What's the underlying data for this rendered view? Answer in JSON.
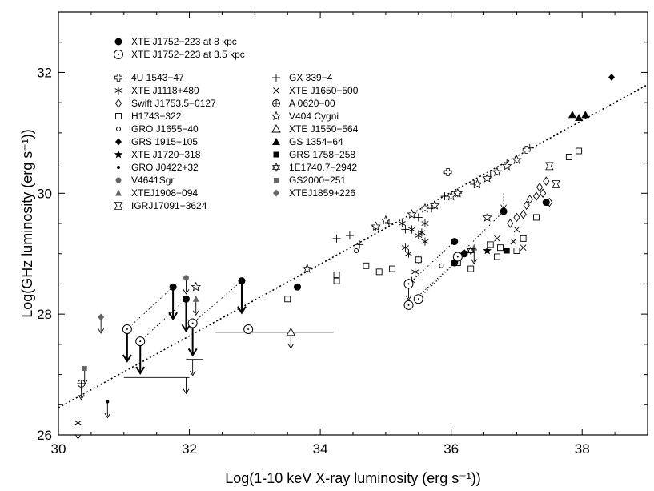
{
  "chart_data": {
    "type": "scatter",
    "xlabel": "Log(1-10 keV X-ray luminosity (erg s⁻¹))",
    "ylabel": "Log(GHz luminosity (erg s⁻¹))",
    "xlim": [
      30,
      39
    ],
    "ylim": [
      26,
      33
    ],
    "xticks": [
      "30",
      "32",
      "34",
      "36",
      "38"
    ],
    "yticks": [
      "26",
      "28",
      "30",
      "32"
    ],
    "fit_line": {
      "x": [
        30,
        39
      ],
      "y": [
        26.45,
        31.8
      ],
      "style": "dotted"
    },
    "legend_top": [
      {
        "name": "XTE J1752−223 at 8 kpc",
        "marker": "filled-circle"
      },
      {
        "name": "XTE J1752−223 at 3.5 kpc",
        "marker": "open-circle-dot"
      }
    ],
    "legend_col1": [
      {
        "name": "4U 1543−47",
        "marker": "dcross"
      },
      {
        "name": "XTE J1118+480",
        "marker": "asterisk"
      },
      {
        "name": "Swift J1753.5−0127",
        "marker": "diamond-open"
      },
      {
        "name": "H1743−322",
        "marker": "square-open"
      },
      {
        "name": "GRO J1655−40",
        "marker": "small-circle"
      },
      {
        "name": "GRS 1915+105",
        "marker": "diamond-filled"
      },
      {
        "name": "XTE J1720−318",
        "marker": "star-filled"
      },
      {
        "name": "GRO J0422+32",
        "marker": "dot"
      },
      {
        "name": "V4641Sgr",
        "marker": "gray-circle"
      },
      {
        "name": "XTEJ1908+094",
        "marker": "gray-triangle"
      },
      {
        "name": "IGRJ17091−3624",
        "marker": "bowtie"
      }
    ],
    "legend_col2": [
      {
        "name": "GX 339−4",
        "marker": "plus"
      },
      {
        "name": "XTE J1650−500",
        "marker": "x"
      },
      {
        "name": "A 0620−00",
        "marker": "circle-plus"
      },
      {
        "name": "V404 Cygni",
        "marker": "star-open"
      },
      {
        "name": "XTE J1550−564",
        "marker": "triangle-open"
      },
      {
        "name": "GS 1354−64",
        "marker": "triangle-filled"
      },
      {
        "name": "GRS 1758−258",
        "marker": "square-filled"
      },
      {
        "name": "1E1740.7−2942",
        "marker": "star-of-david"
      },
      {
        "name": "GS2000+251",
        "marker": "gray-square"
      },
      {
        "name": "XTEJ1859+226",
        "marker": "gray-diamond"
      }
    ],
    "series": [
      {
        "name": "GX 339−4",
        "marker": "plus",
        "points": [
          [
            34.25,
            29.25
          ],
          [
            34.45,
            29.3
          ],
          [
            34.6,
            29.15
          ],
          [
            34.85,
            29.45
          ],
          [
            35.05,
            29.5
          ],
          [
            35.3,
            29.4
          ],
          [
            35.5,
            29.6
          ],
          [
            35.7,
            29.75
          ],
          [
            35.9,
            29.95
          ],
          [
            36.1,
            30.0
          ],
          [
            36.35,
            30.15
          ],
          [
            36.6,
            30.3
          ],
          [
            36.85,
            30.5
          ],
          [
            37.05,
            30.7
          ],
          [
            37.2,
            30.75
          ]
        ]
      },
      {
        "name": "V404 Cygni",
        "marker": "star-open",
        "points": [
          [
            33.8,
            28.75
          ],
          [
            34.85,
            29.45
          ],
          [
            35.0,
            29.55
          ],
          [
            35.4,
            29.65
          ],
          [
            35.6,
            29.75
          ],
          [
            35.75,
            29.8
          ],
          [
            36.0,
            29.95
          ],
          [
            36.1,
            30.0
          ],
          [
            36.4,
            30.15
          ],
          [
            36.55,
            30.25
          ],
          [
            36.7,
            30.35
          ],
          [
            36.85,
            30.45
          ],
          [
            37.0,
            30.55
          ],
          [
            36.55,
            29.6
          ],
          [
            32.1,
            28.45
          ]
        ]
      },
      {
        "name": "XTE J1118+480",
        "marker": "asterisk",
        "points": [
          [
            35.25,
            29.5
          ],
          [
            35.4,
            29.4
          ],
          [
            35.5,
            29.3
          ],
          [
            35.6,
            29.2
          ],
          [
            35.3,
            29.1
          ],
          [
            35.55,
            29.35
          ],
          [
            35.35,
            29.0
          ],
          [
            35.5,
            28.9
          ],
          [
            35.45,
            28.7
          ],
          [
            35.4,
            28.55
          ],
          [
            35.6,
            29.5
          ],
          [
            30.3,
            26.2
          ]
        ]
      },
      {
        "name": "H1743−322",
        "marker": "square-open",
        "points": [
          [
            33.5,
            28.25
          ],
          [
            34.25,
            28.65
          ],
          [
            34.25,
            28.55
          ],
          [
            34.7,
            28.8
          ],
          [
            34.9,
            28.7
          ],
          [
            35.1,
            28.75
          ],
          [
            35.5,
            28.9
          ],
          [
            36.1,
            28.85
          ],
          [
            36.3,
            28.75
          ],
          [
            36.6,
            29.15
          ],
          [
            36.75,
            29.1
          ],
          [
            36.7,
            28.95
          ],
          [
            37.0,
            29.05
          ],
          [
            37.1,
            29.25
          ],
          [
            37.3,
            29.6
          ],
          [
            37.8,
            30.6
          ],
          [
            37.95,
            30.7
          ]
        ]
      },
      {
        "name": "Swift J1753.5−0127",
        "marker": "diamond-open",
        "points": [
          [
            36.9,
            29.5
          ],
          [
            37.0,
            29.6
          ],
          [
            37.1,
            29.65
          ],
          [
            37.15,
            29.8
          ],
          [
            37.2,
            29.9
          ],
          [
            37.3,
            29.95
          ],
          [
            37.35,
            30.1
          ],
          [
            37.4,
            30.0
          ],
          [
            37.45,
            30.2
          ],
          [
            37.5,
            29.85
          ]
        ]
      },
      {
        "name": "XTE J1650−500",
        "marker": "x",
        "points": [
          [
            36.7,
            29.25
          ],
          [
            37.0,
            29.4
          ],
          [
            37.1,
            29.1
          ],
          [
            36.95,
            29.2
          ]
        ]
      },
      {
        "name": "XTE J1720−318",
        "marker": "star-filled",
        "points": [
          [
            36.55,
            29.05
          ]
        ]
      },
      {
        "name": "GRS 1758−258",
        "marker": "square-filled",
        "points": [
          [
            36.85,
            29.05
          ]
        ]
      },
      {
        "name": "GRS 1915+105",
        "marker": "diamond-filled",
        "points": [
          [
            38.45,
            31.92
          ]
        ]
      },
      {
        "name": "GS 1354−64",
        "marker": "triangle-filled",
        "points": [
          [
            37.85,
            31.3
          ],
          [
            37.95,
            31.25
          ],
          [
            38.05,
            31.3
          ]
        ]
      },
      {
        "name": "4U 1543−47",
        "marker": "dcross",
        "points": [
          [
            35.95,
            30.35
          ],
          [
            37.15,
            30.72
          ]
        ]
      },
      {
        "name": "IGRJ17091−3624",
        "marker": "bowtie",
        "points": [
          [
            37.5,
            30.45
          ],
          [
            37.6,
            30.15
          ]
        ]
      },
      {
        "name": "GRO J1655−40",
        "marker": "small-circle",
        "points": [
          [
            34.55,
            29.05
          ],
          [
            35.85,
            28.8
          ]
        ]
      },
      {
        "name": "A 0620−00",
        "marker": "circle-plus",
        "points": [
          [
            30.35,
            26.85
          ]
        ]
      },
      {
        "name": "GS2000+251",
        "marker": "gray-square",
        "points": [
          [
            30.4,
            27.1
          ]
        ]
      },
      {
        "name": "XTEJ1859+226",
        "marker": "gray-diamond",
        "points": [
          [
            30.65,
            27.95
          ]
        ]
      },
      {
        "name": "V4641Sgr",
        "marker": "gray-circle",
        "points": [
          [
            31.95,
            28.6
          ]
        ]
      },
      {
        "name": "XTEJ1908+094",
        "marker": "gray-triangle",
        "points": [
          [
            32.1,
            28.25
          ],
          [
            36.35,
            29.1
          ]
        ]
      },
      {
        "name": "GRO J0422+32",
        "marker": "dot",
        "points": [
          [
            30.75,
            26.55
          ]
        ]
      },
      {
        "name": "1E1740.7−2942",
        "marker": "star-of-david",
        "points": [
          [
            36.3,
            29.05
          ]
        ]
      },
      {
        "name": "XTE J1550−564",
        "marker": "triangle-open",
        "points": [
          [
            33.55,
            27.7
          ]
        ]
      },
      {
        "name": "XTE J1752−223 at 8 kpc",
        "marker": "filled-circle",
        "points": [
          [
            31.75,
            28.45
          ],
          [
            31.95,
            28.25
          ],
          [
            32.8,
            28.55
          ],
          [
            36.05,
            29.2
          ],
          [
            36.05,
            28.85
          ],
          [
            36.2,
            29.0
          ],
          [
            36.8,
            29.7
          ],
          [
            37.45,
            29.85
          ],
          [
            33.65,
            28.45
          ]
        ]
      },
      {
        "name": "XTE J1752−223 at 3.5 kpc",
        "marker": "open-circle-dot",
        "points": [
          [
            31.05,
            27.75
          ],
          [
            31.25,
            27.55
          ],
          [
            32.05,
            27.85
          ],
          [
            32.9,
            27.75
          ],
          [
            35.35,
            28.5
          ],
          [
            35.35,
            28.15
          ],
          [
            35.5,
            28.25
          ],
          [
            36.1,
            28.95
          ]
        ]
      }
    ],
    "upper_limits": [
      {
        "x": 31.75,
        "y": 28.45,
        "heavy": true
      },
      {
        "x": 31.95,
        "y": 28.25,
        "heavy": true
      },
      {
        "x": 32.8,
        "y": 28.55,
        "heavy": true
      },
      {
        "x": 31.05,
        "y": 27.75,
        "heavy": true
      },
      {
        "x": 31.25,
        "y": 27.55,
        "heavy": true
      },
      {
        "x": 32.05,
        "y": 27.85,
        "heavy": true
      },
      {
        "x": 30.3,
        "y": 26.2,
        "heavy": false
      },
      {
        "x": 30.35,
        "y": 26.85,
        "heavy": false
      },
      {
        "x": 30.4,
        "y": 27.1,
        "heavy": false
      },
      {
        "x": 30.65,
        "y": 27.95,
        "heavy": false
      },
      {
        "x": 30.75,
        "y": 26.55,
        "heavy": false
      },
      {
        "x": 31.95,
        "y": 28.6,
        "heavy": false
      },
      {
        "x": 32.1,
        "y": 28.25,
        "heavy": false
      },
      {
        "x": 32.05,
        "y": 27.25,
        "heavy": false
      },
      {
        "x": 31.95,
        "y": 26.95,
        "heavy": false
      },
      {
        "x": 33.55,
        "y": 27.7,
        "heavy": false
      },
      {
        "x": 35.35,
        "y": 28.5,
        "heavy": false
      },
      {
        "x": 36.35,
        "y": 29.1,
        "heavy": false
      },
      {
        "x": 36.8,
        "y": 30.0,
        "heavy": false,
        "dotted": true
      }
    ],
    "xerr_bars": [
      {
        "x": 31.95,
        "y": 26.95,
        "xmin": 31.0,
        "xmax": 32.0
      },
      {
        "x": 32.05,
        "y": 27.25,
        "xmin": 31.95,
        "xmax": 32.2
      },
      {
        "x": 33.55,
        "y": 27.7,
        "xmin": 32.4,
        "xmax": 34.2
      }
    ],
    "connectors": [
      [
        [
          31.75,
          28.45
        ],
        [
          31.05,
          27.75
        ]
      ],
      [
        [
          31.95,
          28.25
        ],
        [
          31.25,
          27.55
        ]
      ],
      [
        [
          32.8,
          28.55
        ],
        [
          32.05,
          27.85
        ]
      ],
      [
        [
          36.05,
          29.2
        ],
        [
          35.35,
          28.5
        ]
      ],
      [
        [
          36.05,
          28.85
        ],
        [
          35.35,
          28.15
        ]
      ],
      [
        [
          36.2,
          29.0
        ],
        [
          35.5,
          28.25
        ]
      ],
      [
        [
          36.8,
          29.7
        ],
        [
          36.1,
          28.95
        ]
      ]
    ]
  }
}
